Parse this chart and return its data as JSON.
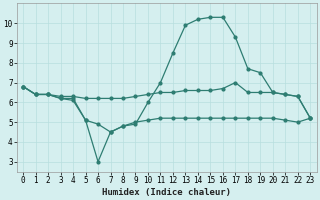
{
  "xlabel": "Humidex (Indice chaleur)",
  "x_values": [
    0,
    1,
    2,
    3,
    4,
    5,
    6,
    7,
    8,
    9,
    10,
    11,
    12,
    13,
    14,
    15,
    16,
    17,
    18,
    19,
    20,
    21,
    22,
    23
  ],
  "line1": [
    6.8,
    6.4,
    6.4,
    6.2,
    6.2,
    5.1,
    4.9,
    4.5,
    4.8,
    4.9,
    6.0,
    7.0,
    8.5,
    9.9,
    10.2,
    10.3,
    10.3,
    9.3,
    7.7,
    7.5,
    6.5,
    6.4,
    6.3,
    5.2
  ],
  "line2": [
    6.8,
    6.4,
    6.4,
    6.3,
    6.3,
    6.2,
    6.2,
    6.2,
    6.2,
    6.3,
    6.4,
    6.5,
    6.5,
    6.6,
    6.6,
    6.6,
    6.7,
    7.0,
    6.5,
    6.5,
    6.5,
    6.4,
    6.3,
    5.2
  ],
  "line3": [
    6.8,
    6.4,
    6.4,
    6.2,
    6.1,
    5.1,
    3.0,
    4.5,
    4.8,
    5.0,
    5.1,
    5.2,
    5.2,
    5.2,
    5.2,
    5.2,
    5.2,
    5.2,
    5.2,
    5.2,
    5.2,
    5.1,
    5.0,
    5.2
  ],
  "line_color": "#2e7d72",
  "bg_color": "#d5efef",
  "grid_color": "#b8dede",
  "ylim": [
    2.5,
    11.0
  ],
  "xlim": [
    -0.5,
    23.5
  ],
  "yticks": [
    3,
    4,
    5,
    6,
    7,
    8,
    9,
    10
  ],
  "xticks": [
    0,
    1,
    2,
    3,
    4,
    5,
    6,
    7,
    8,
    9,
    10,
    11,
    12,
    13,
    14,
    15,
    16,
    17,
    18,
    19,
    20,
    21,
    22,
    23
  ],
  "tick_fontsize": 5.5,
  "xlabel_fontsize": 6.5,
  "marker_size": 2.0,
  "line_width": 0.9
}
